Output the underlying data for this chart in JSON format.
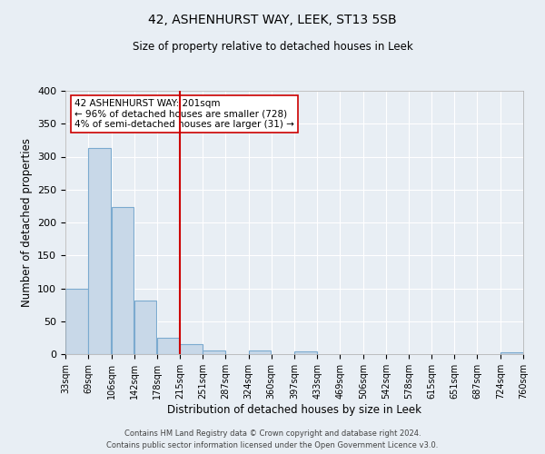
{
  "title": "42, ASHENHURST WAY, LEEK, ST13 5SB",
  "subtitle": "Size of property relative to detached houses in Leek",
  "xlabel": "Distribution of detached houses by size in Leek",
  "ylabel": "Number of detached properties",
  "bin_edges": [
    33,
    69,
    106,
    142,
    178,
    215,
    251,
    287,
    324,
    360,
    397,
    433,
    469,
    506,
    542,
    578,
    615,
    651,
    687,
    724,
    760
  ],
  "bar_heights": [
    99,
    313,
    224,
    81,
    25,
    15,
    5,
    0,
    5,
    0,
    4,
    0,
    0,
    0,
    0,
    0,
    0,
    0,
    0,
    3
  ],
  "bar_color": "#c8d8e8",
  "bar_edgecolor": "#7baacf",
  "vline_x": 215,
  "vline_color": "#cc0000",
  "ylim": [
    0,
    400
  ],
  "yticks": [
    0,
    50,
    100,
    150,
    200,
    250,
    300,
    350,
    400
  ],
  "annotation_text": "42 ASHENHURST WAY: 201sqm\n← 96% of detached houses are smaller (728)\n4% of semi-detached houses are larger (31) →",
  "annotation_box_color": "#ffffff",
  "annotation_box_edgecolor": "#cc0000",
  "footer_line1": "Contains HM Land Registry data © Crown copyright and database right 2024.",
  "footer_line2": "Contains public sector information licensed under the Open Government Licence v3.0.",
  "background_color": "#e8eef4",
  "plot_bg_color": "#e8eef4",
  "tick_labels": [
    "33sqm",
    "69sqm",
    "106sqm",
    "142sqm",
    "178sqm",
    "215sqm",
    "251sqm",
    "287sqm",
    "324sqm",
    "360sqm",
    "397sqm",
    "433sqm",
    "469sqm",
    "506sqm",
    "542sqm",
    "578sqm",
    "615sqm",
    "651sqm",
    "687sqm",
    "724sqm",
    "760sqm"
  ]
}
